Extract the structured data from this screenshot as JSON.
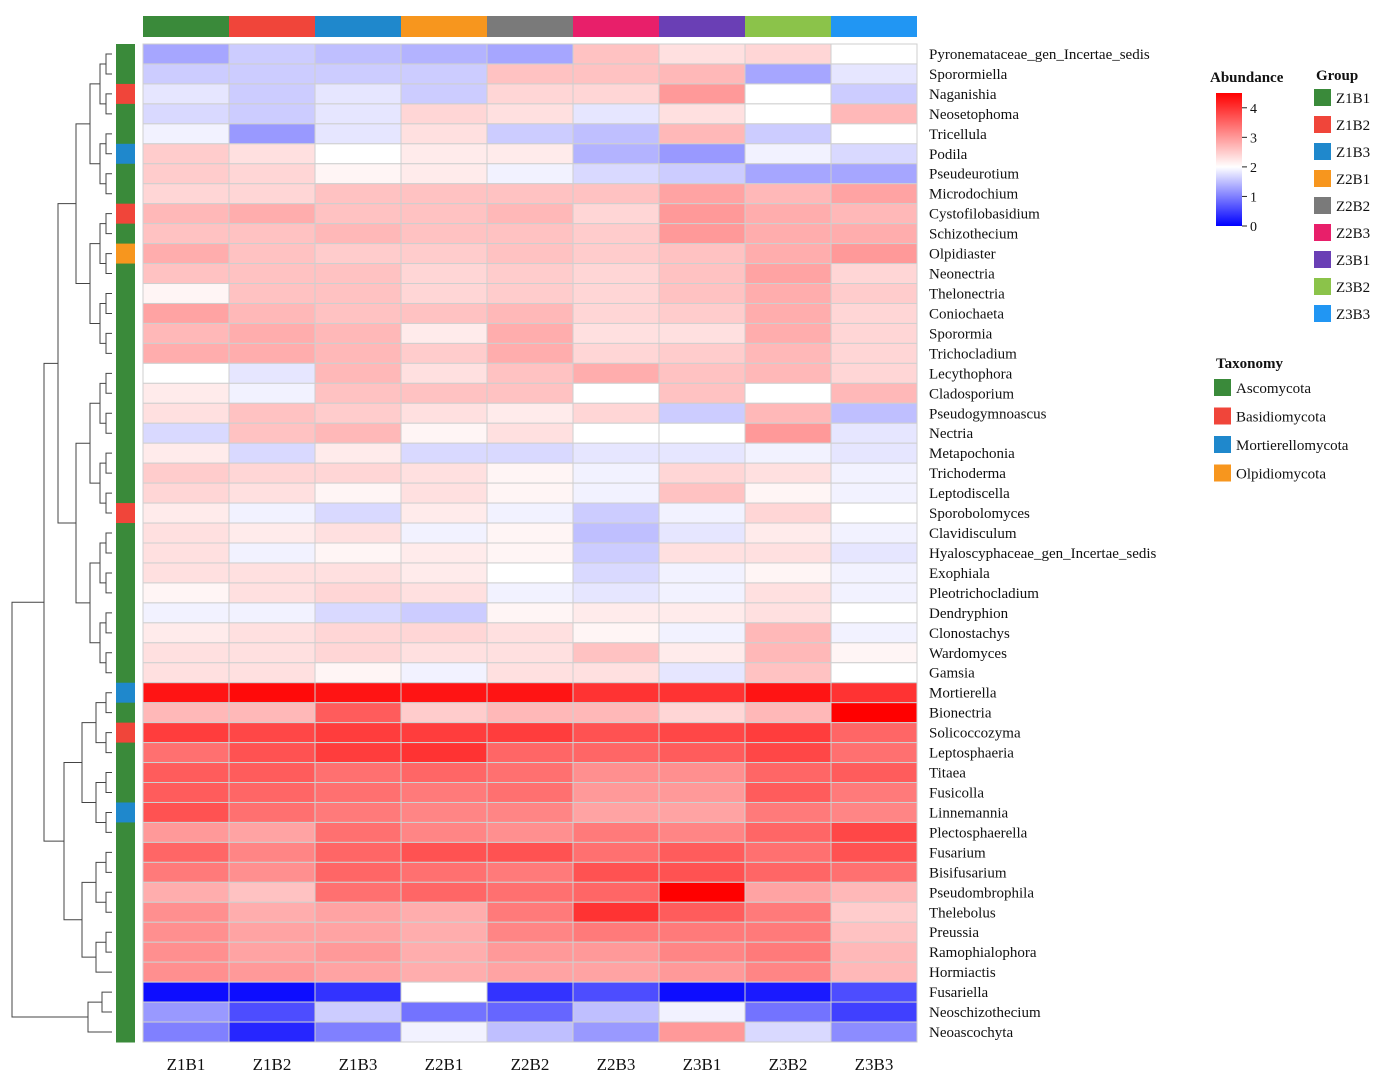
{
  "chart_data": {
    "type": "heatmap",
    "columns": [
      "Z1B1",
      "Z1B2",
      "Z1B3",
      "Z2B1",
      "Z2B2",
      "Z2B3",
      "Z3B1",
      "Z3B2",
      "Z3B3"
    ],
    "rows": [
      {
        "name": "Pyronemataceae_gen_Incertae_sedis",
        "taxonomy": "Ascomycota",
        "values": [
          1.3,
          1.6,
          1.5,
          1.4,
          1.3,
          2.6,
          2.3,
          2.4,
          2.0
        ]
      },
      {
        "name": "Sporormiella",
        "taxonomy": "Ascomycota",
        "values": [
          1.6,
          1.6,
          1.6,
          1.6,
          2.6,
          2.6,
          2.7,
          1.3,
          1.8
        ]
      },
      {
        "name": "Naganishia",
        "taxonomy": "Basidiomycota",
        "values": [
          1.8,
          1.6,
          1.8,
          1.6,
          2.4,
          2.4,
          3.0,
          2.0,
          1.6
        ]
      },
      {
        "name": "Neosetophoma",
        "taxonomy": "Ascomycota",
        "values": [
          1.7,
          1.6,
          1.8,
          2.4,
          2.3,
          1.8,
          2.3,
          2.0,
          2.7
        ]
      },
      {
        "name": "Tricellula",
        "taxonomy": "Ascomycota",
        "values": [
          1.9,
          1.2,
          1.8,
          2.3,
          1.6,
          1.5,
          2.7,
          1.6,
          2.0
        ]
      },
      {
        "name": "Podila",
        "taxonomy": "Mortierellomycota",
        "values": [
          2.5,
          2.3,
          2.0,
          2.2,
          2.2,
          1.4,
          1.2,
          1.9,
          1.7
        ]
      },
      {
        "name": "Pseudeurotium",
        "taxonomy": "Ascomycota",
        "values": [
          2.5,
          2.4,
          2.1,
          2.2,
          1.9,
          1.7,
          1.6,
          1.3,
          1.3
        ]
      },
      {
        "name": "Microdochium",
        "taxonomy": "Ascomycota",
        "values": [
          2.4,
          2.4,
          2.6,
          2.6,
          2.6,
          2.6,
          2.9,
          2.7,
          2.9
        ]
      },
      {
        "name": "Cystofilobasidium",
        "taxonomy": "Basidiomycota",
        "values": [
          2.7,
          2.8,
          2.6,
          2.6,
          2.7,
          2.4,
          3.0,
          2.8,
          2.7
        ]
      },
      {
        "name": "Schizothecium",
        "taxonomy": "Ascomycota",
        "values": [
          2.6,
          2.6,
          2.7,
          2.6,
          2.6,
          2.5,
          3.0,
          2.8,
          2.8
        ]
      },
      {
        "name": "Olpidiaster",
        "taxonomy": "Olpidiomycota",
        "values": [
          2.8,
          2.6,
          2.5,
          2.5,
          2.6,
          2.5,
          2.6,
          2.8,
          3.0
        ]
      },
      {
        "name": "Neonectria",
        "taxonomy": "Ascomycota",
        "values": [
          2.6,
          2.6,
          2.6,
          2.4,
          2.5,
          2.4,
          2.6,
          2.9,
          2.4
        ]
      },
      {
        "name": "Thelonectria",
        "taxonomy": "Ascomycota",
        "values": [
          2.1,
          2.6,
          2.6,
          2.4,
          2.5,
          2.4,
          2.6,
          2.8,
          2.5
        ]
      },
      {
        "name": "Coniochaeta",
        "taxonomy": "Ascomycota",
        "values": [
          2.9,
          2.7,
          2.6,
          2.6,
          2.7,
          2.4,
          2.5,
          2.8,
          2.4
        ]
      },
      {
        "name": "Sporormia",
        "taxonomy": "Ascomycota",
        "values": [
          2.7,
          2.8,
          2.7,
          2.2,
          2.8,
          2.3,
          2.3,
          2.8,
          2.4
        ]
      },
      {
        "name": "Trichocladium",
        "taxonomy": "Ascomycota",
        "values": [
          2.8,
          2.8,
          2.7,
          2.5,
          2.8,
          2.4,
          2.5,
          2.7,
          2.4
        ]
      },
      {
        "name": "Lecythophora",
        "taxonomy": "Ascomycota",
        "values": [
          2.0,
          1.8,
          2.7,
          2.3,
          2.6,
          2.8,
          2.6,
          2.7,
          2.4
        ]
      },
      {
        "name": "Cladosporium",
        "taxonomy": "Ascomycota",
        "values": [
          2.2,
          1.9,
          2.6,
          2.6,
          2.6,
          2.0,
          2.6,
          2.0,
          2.7
        ]
      },
      {
        "name": "Pseudogymnoascus",
        "taxonomy": "Ascomycota",
        "values": [
          2.3,
          2.6,
          2.5,
          2.3,
          2.2,
          2.4,
          1.6,
          2.7,
          1.5
        ]
      },
      {
        "name": "Nectria",
        "taxonomy": "Ascomycota",
        "values": [
          1.7,
          2.6,
          2.7,
          2.1,
          2.3,
          2.0,
          2.0,
          3.0,
          1.8
        ]
      },
      {
        "name": "Metapochonia",
        "taxonomy": "Ascomycota",
        "values": [
          2.2,
          1.7,
          2.2,
          1.7,
          1.7,
          1.8,
          1.8,
          1.9,
          1.8
        ]
      },
      {
        "name": "Trichoderma",
        "taxonomy": "Ascomycota",
        "values": [
          2.5,
          2.4,
          2.4,
          2.3,
          2.1,
          1.9,
          2.4,
          2.3,
          1.9
        ]
      },
      {
        "name": "Leptodiscella",
        "taxonomy": "Ascomycota",
        "values": [
          2.4,
          2.3,
          2.1,
          2.3,
          2.1,
          1.9,
          2.6,
          2.1,
          1.9
        ]
      },
      {
        "name": "Sporobolomyces",
        "taxonomy": "Basidiomycota",
        "values": [
          2.2,
          1.9,
          1.7,
          2.2,
          1.9,
          1.6,
          1.9,
          2.4,
          2.0
        ]
      },
      {
        "name": "Clavidisculum",
        "taxonomy": "Ascomycota",
        "values": [
          2.3,
          2.2,
          2.3,
          1.9,
          2.1,
          1.5,
          1.8,
          2.2,
          1.9
        ]
      },
      {
        "name": "Hyaloscyphaceae_gen_Incertae_sedis",
        "taxonomy": "Ascomycota",
        "values": [
          2.3,
          1.9,
          2.1,
          2.2,
          2.1,
          1.6,
          2.3,
          2.3,
          1.8
        ]
      },
      {
        "name": "Exophiala",
        "taxonomy": "Ascomycota",
        "values": [
          2.3,
          2.3,
          2.3,
          2.2,
          2.0,
          1.7,
          1.9,
          2.1,
          1.9
        ]
      },
      {
        "name": "Pleotrichocladium",
        "taxonomy": "Ascomycota",
        "values": [
          2.1,
          2.3,
          2.4,
          2.3,
          1.9,
          1.8,
          1.9,
          2.3,
          1.9
        ]
      },
      {
        "name": "Dendryphion",
        "taxonomy": "Ascomycota",
        "values": [
          1.9,
          1.9,
          1.7,
          1.6,
          2.1,
          2.2,
          2.2,
          2.3,
          2.0
        ]
      },
      {
        "name": "Clonostachys",
        "taxonomy": "Ascomycota",
        "values": [
          2.2,
          2.3,
          2.4,
          2.4,
          2.3,
          2.1,
          1.9,
          2.7,
          1.9
        ]
      },
      {
        "name": "Wardomyces",
        "taxonomy": "Ascomycota",
        "values": [
          2.3,
          2.3,
          2.4,
          2.3,
          2.3,
          2.6,
          2.2,
          2.7,
          2.1
        ]
      },
      {
        "name": "Gamsia",
        "taxonomy": "Ascomycota",
        "values": [
          2.3,
          2.3,
          2.1,
          1.9,
          2.3,
          2.3,
          1.8,
          2.6,
          2.0
        ]
      },
      {
        "name": "Mortierella",
        "taxonomy": "Mortierellomycota",
        "values": [
          4.3,
          4.4,
          4.3,
          4.3,
          4.3,
          4.0,
          4.0,
          4.3,
          4.0
        ]
      },
      {
        "name": "Bionectria",
        "taxonomy": "Ascomycota",
        "values": [
          2.7,
          2.7,
          3.6,
          2.5,
          2.7,
          2.7,
          2.4,
          2.7,
          4.5
        ]
      },
      {
        "name": "Solicoccozyma",
        "taxonomy": "Basidiomycota",
        "values": [
          3.9,
          3.8,
          3.9,
          3.9,
          3.9,
          3.7,
          3.8,
          3.9,
          3.5
        ]
      },
      {
        "name": "Leptosphaeria",
        "taxonomy": "Ascomycota",
        "values": [
          3.4,
          3.7,
          3.9,
          4.0,
          3.5,
          3.5,
          3.6,
          3.8,
          3.4
        ]
      },
      {
        "name": "Titaea",
        "taxonomy": "Ascomycota",
        "values": [
          3.6,
          3.6,
          3.4,
          3.5,
          3.4,
          3.1,
          3.1,
          3.5,
          3.6
        ]
      },
      {
        "name": "Fusicolla",
        "taxonomy": "Ascomycota",
        "values": [
          3.6,
          3.5,
          3.4,
          3.3,
          3.4,
          3.0,
          3.0,
          3.6,
          3.3
        ]
      },
      {
        "name": "Linnemannia",
        "taxonomy": "Mortierellomycota",
        "values": [
          3.7,
          3.4,
          3.3,
          3.2,
          3.2,
          2.9,
          2.9,
          3.3,
          3.2
        ]
      },
      {
        "name": "Plectosphaerella",
        "taxonomy": "Ascomycota",
        "values": [
          3.0,
          2.9,
          3.4,
          3.2,
          3.1,
          3.3,
          3.2,
          3.5,
          3.8
        ]
      },
      {
        "name": "Fusarium",
        "taxonomy": "Ascomycota",
        "values": [
          3.5,
          3.2,
          3.5,
          3.7,
          3.7,
          3.4,
          3.6,
          3.4,
          3.7
        ]
      },
      {
        "name": "Bisifusarium",
        "taxonomy": "Ascomycota",
        "values": [
          3.3,
          3.1,
          3.5,
          3.4,
          3.3,
          3.7,
          3.7,
          3.5,
          3.4
        ]
      },
      {
        "name": "Pseudombrophila",
        "taxonomy": "Ascomycota",
        "values": [
          2.8,
          2.6,
          3.4,
          3.5,
          3.4,
          3.5,
          4.5,
          2.9,
          2.7
        ]
      },
      {
        "name": "Thelebolus",
        "taxonomy": "Ascomycota",
        "values": [
          3.1,
          2.8,
          2.9,
          2.8,
          3.3,
          4.0,
          3.6,
          3.3,
          2.5
        ]
      },
      {
        "name": "Preussia",
        "taxonomy": "Ascomycota",
        "values": [
          3.1,
          2.9,
          2.9,
          2.8,
          3.2,
          3.3,
          3.3,
          3.3,
          2.6
        ]
      },
      {
        "name": "Ramophialophora",
        "taxonomy": "Ascomycota",
        "values": [
          3.1,
          2.9,
          3.0,
          2.8,
          3.0,
          3.0,
          3.2,
          3.3,
          2.7
        ]
      },
      {
        "name": "Hormiactis",
        "taxonomy": "Ascomycota",
        "values": [
          3.1,
          3.0,
          2.9,
          2.8,
          2.9,
          2.9,
          3.0,
          3.2,
          2.7
        ]
      },
      {
        "name": "Fusariella",
        "taxonomy": "Ascomycota",
        "values": [
          0.1,
          0.1,
          0.4,
          2.0,
          0.4,
          0.6,
          0.1,
          0.2,
          0.6
        ]
      },
      {
        "name": "Neoschizothecium",
        "taxonomy": "Ascomycota",
        "values": [
          1.2,
          0.6,
          1.6,
          0.9,
          0.8,
          1.5,
          1.9,
          0.9,
          0.5
        ]
      },
      {
        "name": "Neoascochyta",
        "taxonomy": "Ascomycota",
        "values": [
          1.0,
          0.3,
          1.0,
          1.9,
          1.5,
          1.2,
          3.0,
          1.7,
          1.1
        ]
      }
    ],
    "color_scale": {
      "min": 0,
      "mid": 2,
      "max": 4.5,
      "low_color": "#0000ff",
      "mid_color": "#ffffff",
      "high_color": "#ff0000",
      "ticks": [
        0,
        1,
        2,
        3,
        4
      ]
    },
    "abundance_legend_title": "Abundance",
    "group_legend": {
      "title": "Group",
      "items": [
        {
          "label": "Z1B1",
          "color": "#3a8a3a"
        },
        {
          "label": "Z1B2",
          "color": "#f0453a"
        },
        {
          "label": "Z1B3",
          "color": "#1f88cc"
        },
        {
          "label": "Z2B1",
          "color": "#f7961e"
        },
        {
          "label": "Z2B2",
          "color": "#7a7a7a"
        },
        {
          "label": "Z2B3",
          "color": "#e81f6a"
        },
        {
          "label": "Z3B1",
          "color": "#6a3fb5"
        },
        {
          "label": "Z3B2",
          "color": "#8bc34a"
        },
        {
          "label": "Z3B3",
          "color": "#2196f3"
        }
      ]
    },
    "taxonomy_legend": {
      "title": "Taxonomy",
      "items": [
        {
          "label": "Ascomycota",
          "color": "#3a8a3a"
        },
        {
          "label": "Basidiomycota",
          "color": "#f0453a"
        },
        {
          "label": "Mortierellomycota",
          "color": "#1f88cc"
        },
        {
          "label": "Olpidiomycota",
          "color": "#f7961e"
        }
      ]
    }
  }
}
